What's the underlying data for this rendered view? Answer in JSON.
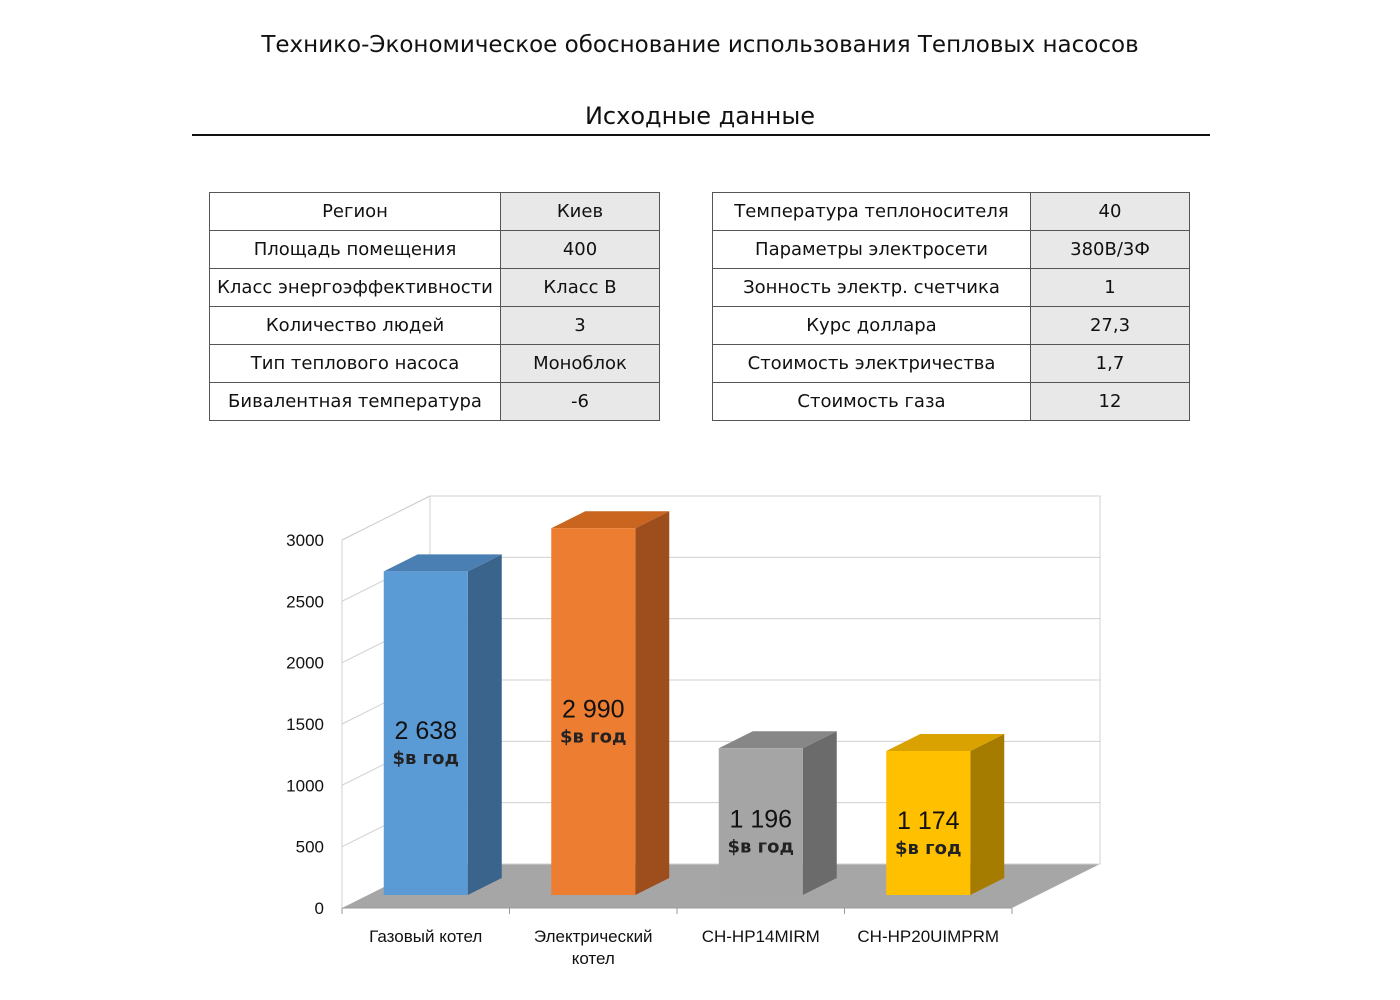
{
  "page": {
    "title": "Технико-Экономическое обоснование использования Тепловых насосов",
    "section_title": "Исходные данные"
  },
  "params_left": [
    {
      "label": "Регион",
      "value": "Киев"
    },
    {
      "label": "Площадь помещения",
      "value": "400"
    },
    {
      "label": "Класс энергоэффективности",
      "value": "Класс В"
    },
    {
      "label": "Количество людей",
      "value": "3"
    },
    {
      "label": "Тип теплового насоса",
      "value": "Моноблок"
    },
    {
      "label": "Бивалентная температура",
      "value": "-6"
    }
  ],
  "params_right": [
    {
      "label": "Температура теплоносителя",
      "value": "40"
    },
    {
      "label": "Параметры электросети",
      "value": "380В/3Ф"
    },
    {
      "label": "Зонность электр. счетчика",
      "value": "1"
    },
    {
      "label": "Курс доллара",
      "value": "27,3"
    },
    {
      "label": "Стоимость электричества",
      "value": "1,7"
    },
    {
      "label": "Стоимость газа",
      "value": "12"
    }
  ],
  "chart_data": {
    "type": "bar",
    "style": "3d-column",
    "categories": [
      [
        "Газовый котел"
      ],
      [
        "Электрический",
        "котел"
      ],
      [
        "CH-HP14MIRM"
      ],
      [
        "CH-HP20UIMPRM"
      ]
    ],
    "values": [
      2638,
      2990,
      1196,
      1174
    ],
    "value_labels": [
      "2 638",
      "2 990",
      "1 196",
      "1 174"
    ],
    "value_unit": "$в год",
    "colors": [
      "#5B9BD5",
      "#ED7D31",
      "#A5A5A5",
      "#FFC000"
    ],
    "side_colors": [
      "#3A648C",
      "#9E4E1C",
      "#6B6B6B",
      "#A67C00"
    ],
    "top_colors": [
      "#4A7FB3",
      "#C9651F",
      "#878787",
      "#D9A200"
    ],
    "ylim": [
      0,
      3000
    ],
    "yticks": [
      0,
      500,
      1000,
      1500,
      2000,
      2500,
      3000
    ],
    "grid": true,
    "legend": "none"
  }
}
